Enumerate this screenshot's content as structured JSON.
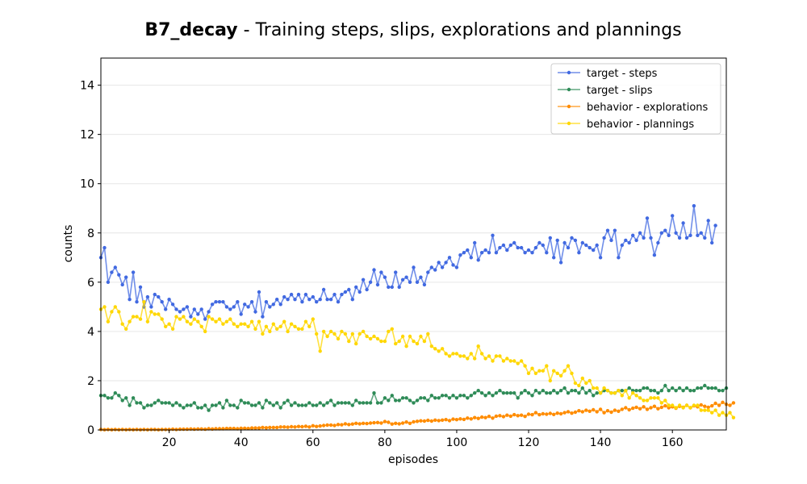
{
  "chart_data": {
    "type": "line",
    "title_bold": "B7_decay",
    "title_rest": " - Training steps, slips, explorations and plannings",
    "xlabel": "episodes",
    "ylabel": "counts",
    "xlim": [
      1,
      175
    ],
    "ylim": [
      0,
      15.1
    ],
    "xticks": [
      20,
      40,
      60,
      80,
      100,
      120,
      140,
      160
    ],
    "yticks": [
      0,
      2,
      4,
      6,
      8,
      10,
      12,
      14
    ],
    "grid": "horizontal",
    "legend_position": "top-right",
    "series": [
      {
        "name": "target - steps",
        "color": "#4169e1",
        "values": [
          7.0,
          7.4,
          6.0,
          6.4,
          6.6,
          6.3,
          5.9,
          6.2,
          5.3,
          6.4,
          5.2,
          5.8,
          5.0,
          5.4,
          5.0,
          5.5,
          5.4,
          5.2,
          4.9,
          5.3,
          5.1,
          4.9,
          4.8,
          4.9,
          5.0,
          4.6,
          4.9,
          4.7,
          4.9,
          4.5,
          4.8,
          5.1,
          5.2,
          5.2,
          5.2,
          5.0,
          4.9,
          5.0,
          5.2,
          4.7,
          5.1,
          5.0,
          5.2,
          4.8,
          5.6,
          4.6,
          5.2,
          5.0,
          5.1,
          5.3,
          5.1,
          5.4,
          5.3,
          5.5,
          5.3,
          5.5,
          5.2,
          5.5,
          5.3,
          5.4,
          5.2,
          5.3,
          5.7,
          5.3,
          5.3,
          5.5,
          5.2,
          5.5,
          5.6,
          5.7,
          5.3,
          5.8,
          5.6,
          6.1,
          5.7,
          6.0,
          6.5,
          5.9,
          6.4,
          6.2,
          5.8,
          5.8,
          6.4,
          5.8,
          6.1,
          6.2,
          6.0,
          6.6,
          6.0,
          6.2,
          5.9,
          6.4,
          6.6,
          6.5,
          6.8,
          6.6,
          6.8,
          7.0,
          6.7,
          6.6,
          7.1,
          7.2,
          7.3,
          7.0,
          7.6,
          6.9,
          7.2,
          7.3,
          7.2,
          7.9,
          7.2,
          7.4,
          7.5,
          7.3,
          7.5,
          7.6,
          7.4,
          7.4,
          7.2,
          7.3,
          7.2,
          7.4,
          7.6,
          7.5,
          7.2,
          7.8,
          7.0,
          7.7,
          6.8,
          7.6,
          7.4,
          7.8,
          7.7,
          7.2,
          7.6,
          7.5,
          7.4,
          7.3,
          7.5,
          7.0,
          7.8,
          8.1,
          7.7,
          8.1,
          7.0,
          7.5,
          7.7,
          7.6,
          7.9,
          7.7,
          8.0,
          7.8,
          8.6,
          7.8,
          7.1,
          7.6,
          8.0,
          8.1,
          7.9,
          8.7,
          8.0,
          7.8,
          8.4,
          7.8,
          7.9,
          9.1,
          7.9,
          8.0,
          7.8,
          8.5,
          7.6,
          8.3
        ]
      },
      {
        "name": "target - slips",
        "color": "#2e8b57",
        "values": [
          1.4,
          1.4,
          1.3,
          1.3,
          1.5,
          1.4,
          1.2,
          1.3,
          1.0,
          1.3,
          1.1,
          1.1,
          0.9,
          1.0,
          1.0,
          1.1,
          1.2,
          1.1,
          1.1,
          1.1,
          1.0,
          1.1,
          1.0,
          0.9,
          1.0,
          1.0,
          1.1,
          0.9,
          0.9,
          1.0,
          0.8,
          1.0,
          1.0,
          1.1,
          0.9,
          1.2,
          1.0,
          1.0,
          0.9,
          1.2,
          1.1,
          1.1,
          1.0,
          1.0,
          1.1,
          0.9,
          1.2,
          1.1,
          1.0,
          1.1,
          0.9,
          1.1,
          1.2,
          1.0,
          1.1,
          1.0,
          1.0,
          1.0,
          1.1,
          1.0,
          1.0,
          1.1,
          1.0,
          1.1,
          1.2,
          1.0,
          1.1,
          1.1,
          1.1,
          1.1,
          1.0,
          1.2,
          1.1,
          1.1,
          1.1,
          1.1,
          1.5,
          1.1,
          1.1,
          1.3,
          1.2,
          1.4,
          1.2,
          1.2,
          1.3,
          1.3,
          1.2,
          1.1,
          1.2,
          1.3,
          1.3,
          1.2,
          1.4,
          1.3,
          1.3,
          1.4,
          1.4,
          1.3,
          1.4,
          1.3,
          1.4,
          1.4,
          1.3,
          1.4,
          1.5,
          1.6,
          1.5,
          1.4,
          1.5,
          1.4,
          1.5,
          1.6,
          1.5,
          1.5,
          1.5,
          1.5,
          1.3,
          1.5,
          1.6,
          1.5,
          1.4,
          1.6,
          1.5,
          1.6,
          1.5,
          1.5,
          1.6,
          1.5,
          1.6,
          1.7,
          1.5,
          1.6,
          1.6,
          1.5,
          1.7,
          1.5,
          1.6,
          1.4,
          1.5,
          1.5,
          1.6,
          1.6,
          1.5,
          1.5,
          1.6,
          1.6,
          1.6,
          1.7,
          1.6,
          1.6,
          1.6,
          1.7,
          1.7,
          1.6,
          1.6,
          1.5,
          1.6,
          1.8,
          1.6,
          1.7,
          1.6,
          1.7,
          1.6,
          1.7,
          1.6,
          1.6,
          1.7,
          1.7,
          1.8,
          1.7,
          1.7,
          1.7,
          1.6,
          1.6,
          1.7
        ]
      },
      {
        "name": "behavior - explorations",
        "color": "#ff8c00",
        "values": [
          0.02,
          0.01,
          0.02,
          0.01,
          0.02,
          0.01,
          0.02,
          0.01,
          0.02,
          0.01,
          0.02,
          0.01,
          0.02,
          0.01,
          0.02,
          0.02,
          0.01,
          0.02,
          0.02,
          0.02,
          0.03,
          0.02,
          0.03,
          0.03,
          0.03,
          0.04,
          0.03,
          0.04,
          0.04,
          0.03,
          0.05,
          0.04,
          0.05,
          0.05,
          0.05,
          0.06,
          0.06,
          0.06,
          0.05,
          0.07,
          0.07,
          0.06,
          0.08,
          0.08,
          0.08,
          0.1,
          0.09,
          0.1,
          0.1,
          0.1,
          0.12,
          0.12,
          0.11,
          0.13,
          0.12,
          0.14,
          0.13,
          0.15,
          0.12,
          0.17,
          0.14,
          0.16,
          0.18,
          0.2,
          0.2,
          0.18,
          0.22,
          0.21,
          0.25,
          0.22,
          0.24,
          0.27,
          0.25,
          0.27,
          0.26,
          0.28,
          0.29,
          0.3,
          0.28,
          0.34,
          0.31,
          0.24,
          0.27,
          0.25,
          0.28,
          0.32,
          0.27,
          0.33,
          0.35,
          0.37,
          0.36,
          0.39,
          0.36,
          0.4,
          0.38,
          0.4,
          0.42,
          0.38,
          0.44,
          0.42,
          0.45,
          0.43,
          0.48,
          0.45,
          0.5,
          0.47,
          0.52,
          0.5,
          0.55,
          0.48,
          0.56,
          0.58,
          0.54,
          0.6,
          0.56,
          0.62,
          0.58,
          0.6,
          0.55,
          0.64,
          0.62,
          0.7,
          0.62,
          0.66,
          0.64,
          0.67,
          0.63,
          0.68,
          0.66,
          0.7,
          0.74,
          0.68,
          0.72,
          0.78,
          0.74,
          0.8,
          0.76,
          0.82,
          0.74,
          0.84,
          0.7,
          0.78,
          0.72,
          0.8,
          0.76,
          0.84,
          0.9,
          0.82,
          0.88,
          0.92,
          0.86,
          0.94,
          0.84,
          0.9,
          0.96,
          0.86,
          0.92,
          0.98,
          0.9,
          0.94,
          0.88,
          0.96,
          0.92,
          1.0,
          0.9,
          0.98,
          0.94,
          1.02,
          0.96,
          0.92,
          0.98,
          1.08,
          1.0,
          1.12,
          1.04,
          1.0,
          1.1
        ]
      },
      {
        "name": "behavior - plannings",
        "color": "#ffd700",
        "values": [
          4.9,
          5.0,
          4.4,
          4.8,
          5.0,
          4.8,
          4.3,
          4.1,
          4.4,
          4.6,
          4.6,
          4.5,
          5.2,
          4.4,
          4.8,
          4.7,
          4.7,
          4.5,
          4.2,
          4.3,
          4.1,
          4.6,
          4.5,
          4.6,
          4.4,
          4.3,
          4.5,
          4.4,
          4.2,
          4.0,
          4.6,
          4.5,
          4.4,
          4.5,
          4.3,
          4.4,
          4.5,
          4.3,
          4.2,
          4.3,
          4.3,
          4.2,
          4.4,
          4.1,
          4.4,
          3.9,
          4.2,
          4.0,
          4.3,
          4.1,
          4.2,
          4.4,
          4.0,
          4.3,
          4.2,
          4.1,
          4.1,
          4.4,
          4.2,
          4.5,
          3.9,
          3.2,
          4.0,
          3.8,
          4.0,
          3.9,
          3.7,
          4.0,
          3.9,
          3.6,
          3.9,
          3.5,
          3.9,
          4.0,
          3.8,
          3.7,
          3.8,
          3.7,
          3.6,
          3.6,
          4.0,
          4.1,
          3.5,
          3.6,
          3.8,
          3.4,
          3.8,
          3.6,
          3.5,
          3.8,
          3.6,
          3.9,
          3.4,
          3.3,
          3.2,
          3.3,
          3.1,
          3.0,
          3.1,
          3.1,
          3.0,
          3.0,
          2.9,
          3.1,
          2.9,
          3.4,
          3.1,
          2.9,
          3.0,
          2.8,
          3.0,
          3.0,
          2.8,
          2.9,
          2.8,
          2.8,
          2.7,
          2.8,
          2.6,
          2.3,
          2.5,
          2.3,
          2.4,
          2.4,
          2.6,
          2.0,
          2.4,
          2.3,
          2.2,
          2.4,
          2.6,
          2.3,
          1.9,
          1.8,
          2.1,
          1.9,
          2.0,
          1.7,
          1.7,
          1.5,
          1.7,
          1.6,
          1.5,
          1.5,
          1.6,
          1.4,
          1.6,
          1.3,
          1.5,
          1.4,
          1.3,
          1.2,
          1.2,
          1.3,
          1.3,
          1.3,
          1.1,
          1.2,
          1.0,
          1.0,
          0.9,
          1.0,
          0.9,
          1.0,
          0.9,
          1.0,
          1.0,
          0.8,
          0.8,
          0.8,
          0.7,
          0.8,
          0.6,
          0.7,
          0.6,
          0.7,
          0.5
        ]
      }
    ]
  }
}
